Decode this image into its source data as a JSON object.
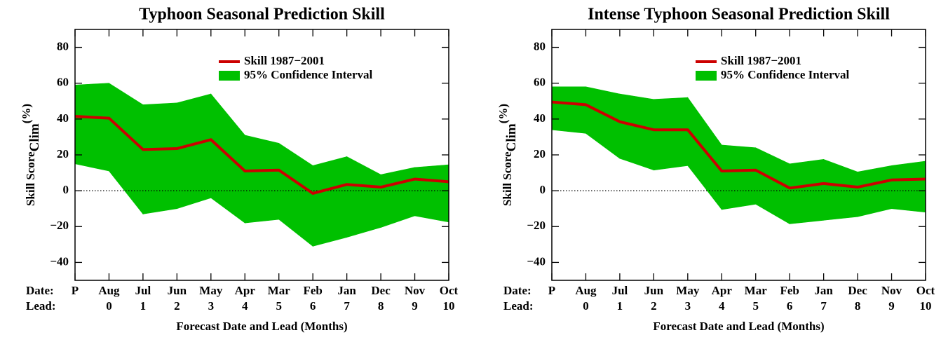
{
  "chart_data": [
    {
      "type": "line",
      "title": "Typhoon Seasonal Prediction Skill",
      "ylabel": "Skill Score",
      "ylabel_sub": "Clim",
      "ylabel_unit": "(%)",
      "xlabel": "Forecast Date and Lead (Months)",
      "row_labels": [
        "Date:",
        "Lead:"
      ],
      "categories": [
        "P",
        "Aug",
        "Jul",
        "Jun",
        "May",
        "Apr",
        "Mar",
        "Feb",
        "Jan",
        "Dec",
        "Nov",
        "Oct"
      ],
      "leads": [
        null,
        "0",
        "1",
        "2",
        "3",
        "4",
        "5",
        "6",
        "7",
        "8",
        "9",
        "10"
      ],
      "series": [
        {
          "name": "Skill 1987−2001",
          "color": "#cc0000",
          "values": [
            41.5,
            40.5,
            23,
            23.5,
            28.5,
            11,
            11.5,
            -1.5,
            3.5,
            2,
            6.5,
            5
          ]
        }
      ],
      "band": {
        "name": "95% Confidence Interval",
        "color": "#00c000",
        "upper": [
          59,
          60,
          48,
          49,
          54,
          31,
          26.5,
          14,
          19,
          9,
          13,
          14.5
        ],
        "lower": [
          15,
          11,
          -13,
          -10,
          -4,
          -18,
          -16,
          -31,
          -26,
          -20.5,
          -14,
          -17.5
        ]
      },
      "reference_line": 0,
      "ylim": [
        -50,
        90
      ],
      "yticks": [
        {
          "value": -40,
          "label": "−40"
        },
        {
          "value": -20,
          "label": "−20"
        },
        0,
        20,
        40,
        60,
        80
      ],
      "legend": "upper right"
    },
    {
      "type": "line",
      "title": "Intense Typhoon Seasonal Prediction Skill",
      "ylabel": "Skill Score",
      "ylabel_sub": "Clim",
      "ylabel_unit": "(%)",
      "xlabel": "Forecast Date and Lead (Months)",
      "row_labels": [
        "Date:",
        "Lead:"
      ],
      "categories": [
        "P",
        "Aug",
        "Jul",
        "Jun",
        "May",
        "Apr",
        "Mar",
        "Feb",
        "Jan",
        "Dec",
        "Nov",
        "Oct"
      ],
      "leads": [
        null,
        "0",
        "1",
        "2",
        "3",
        "4",
        "5",
        "6",
        "7",
        "8",
        "9",
        "10"
      ],
      "series": [
        {
          "name": "Skill 1987−2001",
          "color": "#cc0000",
          "values": [
            49.5,
            48,
            38.5,
            34,
            34,
            11,
            11.5,
            1.5,
            4,
            2,
            6,
            6.5
          ]
        }
      ],
      "band": {
        "name": "95% Confidence Interval",
        "color": "#00c000",
        "upper": [
          58,
          58,
          54,
          51,
          52,
          25.5,
          24,
          15,
          17.5,
          10.5,
          14,
          16.5
        ],
        "lower": [
          34,
          32,
          18,
          11.5,
          14,
          -10.5,
          -7.5,
          -18.5,
          -16.5,
          -14.5,
          -10,
          -12
        ]
      },
      "reference_line": 0,
      "ylim": [
        -50,
        90
      ],
      "yticks": [
        {
          "value": -40,
          "label": "−40"
        },
        {
          "value": -20,
          "label": "−20"
        },
        0,
        20,
        40,
        60,
        80
      ],
      "legend": "upper right"
    }
  ]
}
